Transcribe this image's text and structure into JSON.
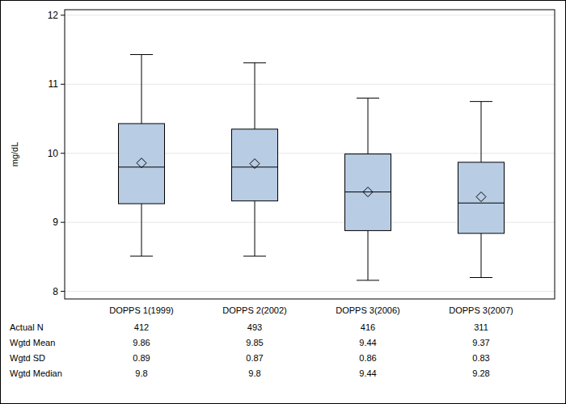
{
  "chart_data": {
    "type": "box",
    "y_label": "mg/dL",
    "categories": [
      "DOPPS 1(1999)",
      "DOPPS 2(2002)",
      "DOPPS 3(2006)",
      "DOPPS 3(2007)"
    ],
    "whisker_low": [
      8.51,
      8.51,
      8.16,
      8.2
    ],
    "q1": [
      9.27,
      9.31,
      8.88,
      8.84
    ],
    "median": [
      9.8,
      9.8,
      9.44,
      9.28
    ],
    "q3": [
      10.43,
      10.35,
      9.99,
      9.87
    ],
    "whisker_high": [
      11.43,
      11.31,
      10.8,
      10.75
    ],
    "mean": [
      9.86,
      9.85,
      9.44,
      9.37
    ],
    "color": "#b8cce4",
    "marker": "diamond",
    "grid": true,
    "ylim": [
      7.89,
      12.08
    ],
    "yticks": [
      8,
      9,
      10,
      11,
      12
    ],
    "table": {
      "rows": [
        {
          "label": "Actual N",
          "values": [
            412,
            493,
            416,
            311
          ]
        },
        {
          "label": "Wgtd Mean",
          "values": [
            9.86,
            9.85,
            9.44,
            9.37
          ]
        },
        {
          "label": "Wgtd SD",
          "values": [
            0.89,
            0.87,
            0.86,
            0.83
          ]
        },
        {
          "label": "Wgtd Median",
          "values": [
            9.8,
            9.8,
            9.44,
            9.28
          ]
        }
      ]
    }
  }
}
